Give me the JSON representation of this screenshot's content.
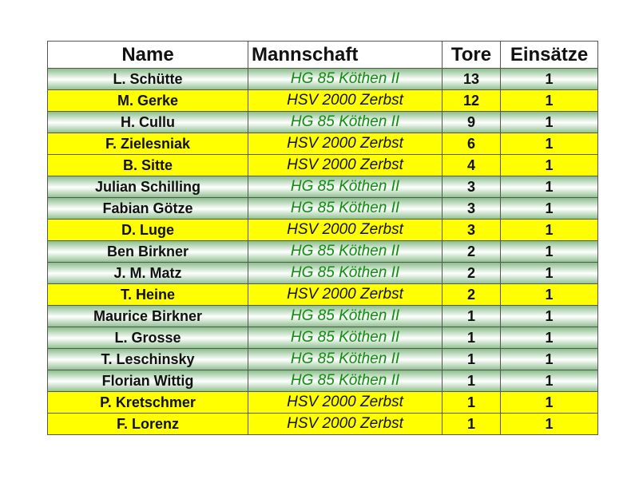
{
  "table": {
    "header": [
      "Name",
      "Mannschaft",
      "Tore",
      "Einsätze"
    ],
    "rows": [
      [
        "L. Schütte",
        "HG 85 Köthen II",
        13,
        1
      ],
      [
        "M. Gerke",
        "HSV 2000 Zerbst",
        12,
        1
      ],
      [
        "H. Cullu",
        "HG 85 Köthen II",
        9,
        1
      ],
      [
        "F. Zielesniak",
        "HSV 2000 Zerbst",
        6,
        1
      ],
      [
        "B. Sitte",
        "HSV 2000 Zerbst",
        4,
        1
      ],
      [
        "Julian Schilling",
        "HG 85 Köthen II",
        3,
        1
      ],
      [
        "Fabian Götze",
        "HG 85 Köthen II",
        3,
        1
      ],
      [
        "D. Luge",
        "HSV 2000 Zerbst",
        3,
        1
      ],
      [
        "Ben Birkner",
        "HG 85 Köthen II",
        2,
        1
      ],
      [
        "J. M. Matz",
        "HG 85 Köthen II",
        2,
        1
      ],
      [
        "T. Heine",
        "HSV 2000 Zerbst",
        2,
        1
      ],
      [
        "Maurice Birkner",
        "HG 85 Köthen II",
        1,
        1
      ],
      [
        "L. Grosse",
        "HG 85 Köthen II",
        1,
        1
      ],
      [
        "T. Leschinsky",
        "HG 85 Köthen II",
        1,
        1
      ],
      [
        "Florian Wittig",
        "HG 85 Köthen II",
        1,
        1
      ],
      [
        "P. Kretschmer",
        "HSV 2000 Zerbst",
        1,
        1
      ],
      [
        "F. Lorenz",
        "HSV 2000 Zerbst",
        1,
        1
      ]
    ]
  }
}
